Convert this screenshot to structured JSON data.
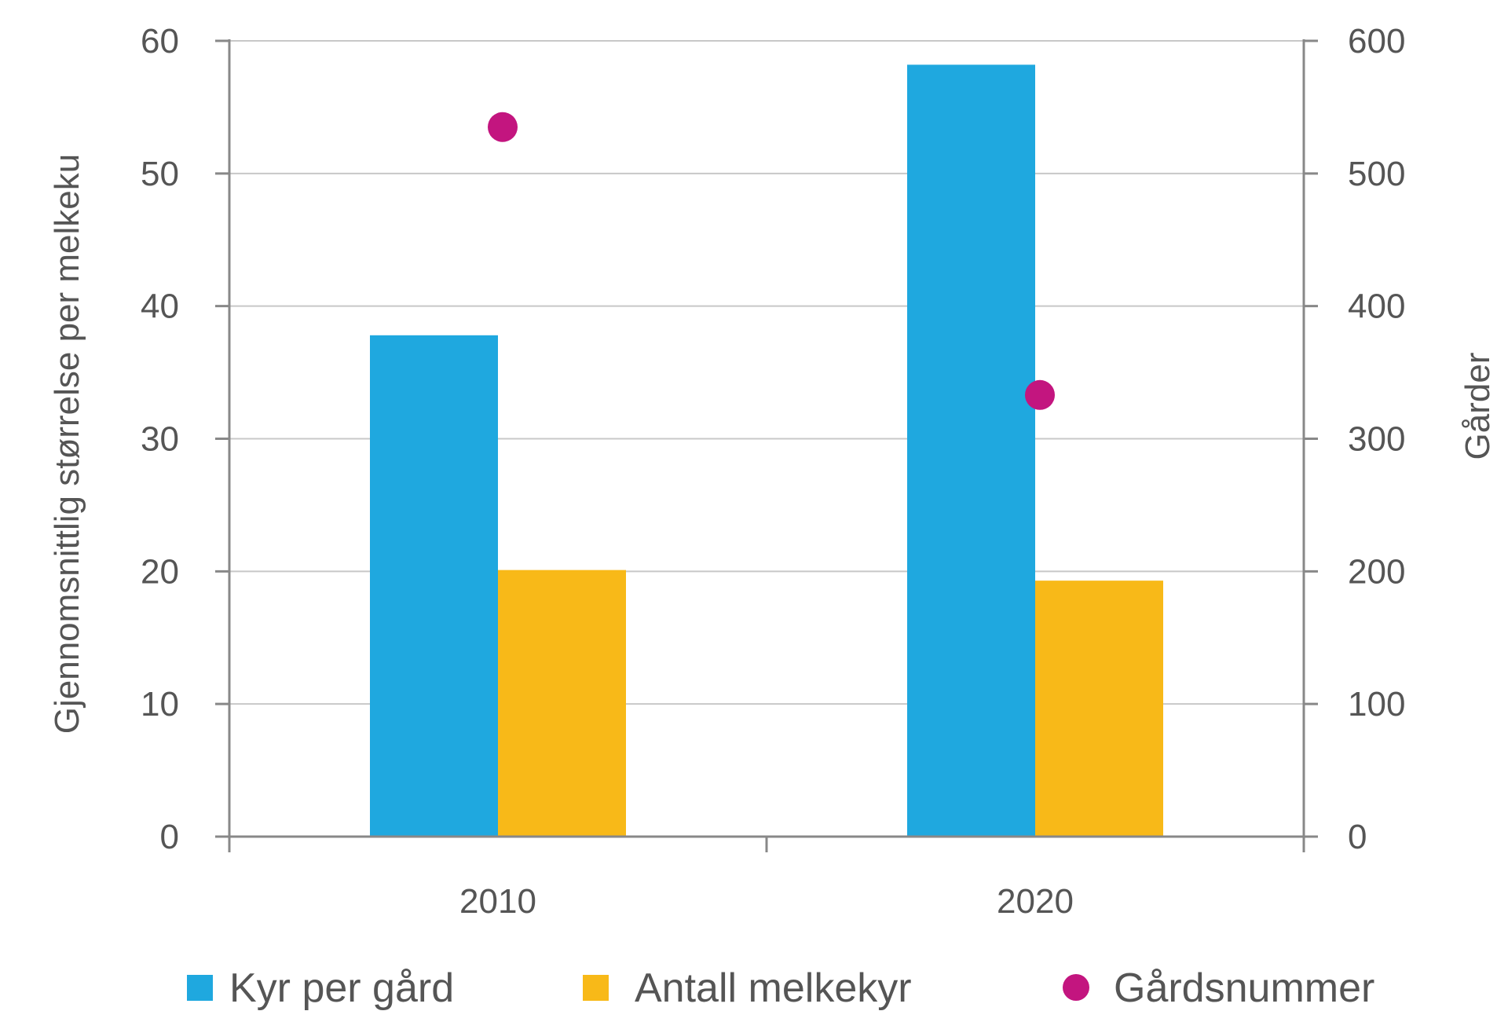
{
  "chart_data": {
    "type": "bar",
    "categories": [
      "2010",
      "2020"
    ],
    "series": [
      {
        "name": "Kyr per gård",
        "axis": "left",
        "kind": "bar",
        "color": "#1FA8DF",
        "values": [
          37.8,
          58.2
        ]
      },
      {
        "name": "Antall melkekyr",
        "axis": "left",
        "kind": "bar",
        "color": "#F8B918",
        "values": [
          20.1,
          19.3
        ]
      },
      {
        "name": "Gårdsnummer",
        "axis": "right",
        "kind": "scatter",
        "color": "#C3157F",
        "values": [
          535,
          333
        ]
      }
    ],
    "ylabel": "Gjennomsnittlig størrelse per melkeku",
    "y2label": "Gårder",
    "ylim": [
      0,
      60
    ],
    "y2lim": [
      0,
      600
    ],
    "yticks": [
      "0",
      "10",
      "20",
      "30",
      "40",
      "50",
      "60"
    ],
    "y2ticks": [
      "0",
      "100",
      "200",
      "300",
      "400",
      "500",
      "600"
    ],
    "grid": true,
    "legend": "bottom"
  }
}
